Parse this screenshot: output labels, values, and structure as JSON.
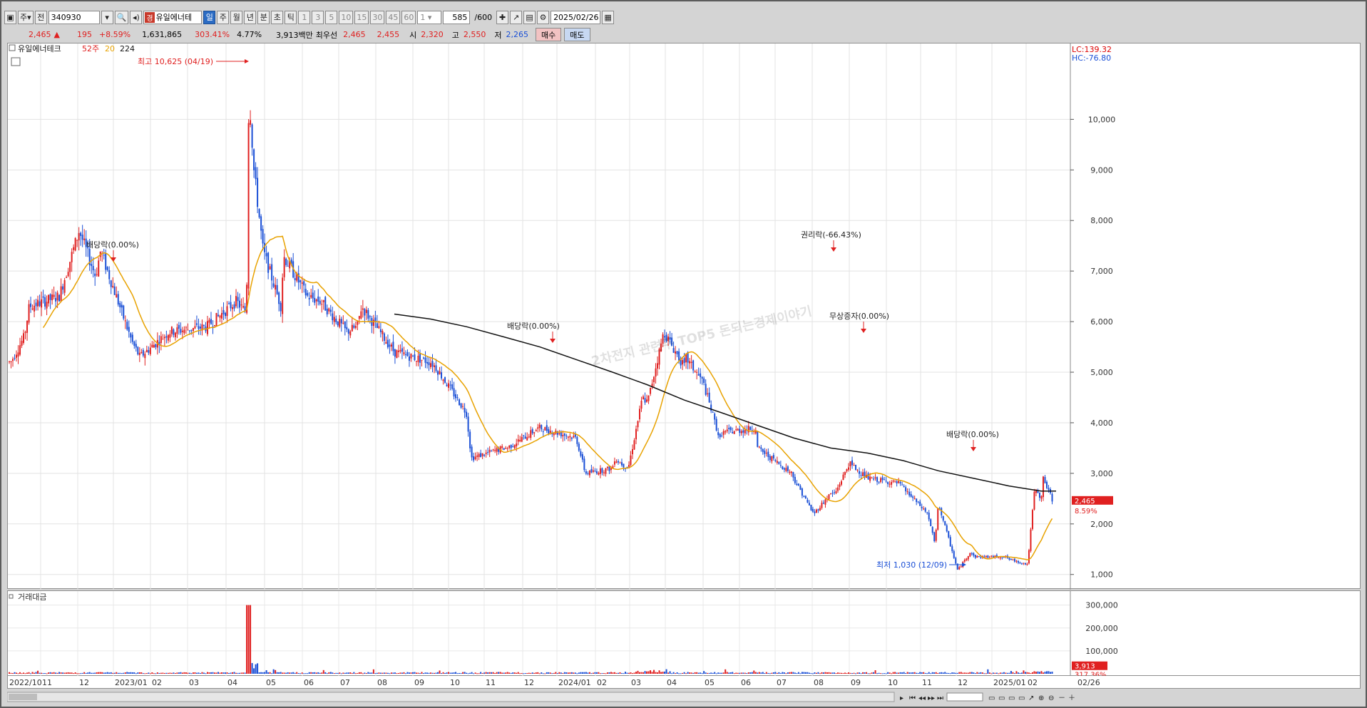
{
  "toolbar": {
    "period_prefix": "주",
    "scope_label": "전",
    "code": "340930",
    "stock_badge": "경",
    "stock_name": "유일에너테",
    "periods": [
      "일",
      "주",
      "월",
      "년",
      "분",
      "초",
      "틱"
    ],
    "minutes": [
      "1",
      "3",
      "5",
      "10",
      "15",
      "30",
      "45",
      "60"
    ],
    "count_unit": "1",
    "count": "585",
    "count_max": "/600",
    "date": "2025/02/26"
  },
  "quote": {
    "price": "2,465",
    "arrow": "▲",
    "change": "195",
    "change_pct": "+8.59%",
    "volume": "1,631,865",
    "vol_ratio": "303.41%",
    "turnover": "4.77%",
    "value": "3,913백만",
    "best_ask_label": "최우선",
    "best_ask": "2,465",
    "best_bid": "2,455",
    "open_label": "시",
    "open": "2,320",
    "high_label": "고",
    "high": "2,550",
    "low_label": "저",
    "low": "2,265",
    "buy_label": "매수",
    "sell_label": "매도"
  },
  "legend": {
    "name": "유일에너테크",
    "w52": "52주",
    "ma20": "20",
    "ma224": "224"
  },
  "right_info": {
    "lc": "LC:139.32",
    "hc": "HC:-76.80"
  },
  "price_axis": [
    "10,000",
    "9,000",
    "8,000",
    "7,000",
    "6,000",
    "5,000",
    "4,000",
    "3,000",
    "2,000",
    "1,000"
  ],
  "price_tag": {
    "price": "2,465",
    "pct": "8.59%"
  },
  "annotations": {
    "high": "최고 10,625 (04/19)",
    "low": "최저 1,030 (12/09)",
    "div1": "배당락(0.00%)",
    "div2": "배당락(0.00%)",
    "rights": "권리락(-66.43%)",
    "bonus": "무상증자(0.00%)",
    "div3": "배당락(0.00%)"
  },
  "watermark": "2차전지 관련주 TOP5 돈되는경제이야기",
  "volume_panel": {
    "title": "거래대금",
    "axis": [
      "300,000",
      "200,000",
      "100,000"
    ],
    "tag_value": "3,913",
    "tag_pct": "317.36%"
  },
  "x_axis": [
    "2022/10",
    "11",
    "12",
    "2023/01",
    "02",
    "03",
    "04",
    "05",
    "06",
    "07",
    "08",
    "09",
    "10",
    "11",
    "12",
    "2024/01",
    "02",
    "03",
    "04",
    "05",
    "06",
    "07",
    "08",
    "09",
    "10",
    "11",
    "12",
    "2025/01",
    "02",
    "02/26"
  ],
  "colors": {
    "up": "#e02020",
    "down": "#1a4fd6",
    "ma20": "#e8a200",
    "ma224": "#111111"
  },
  "chart_data": {
    "type": "candlestick",
    "x": [
      "2022/10",
      "2022/11",
      "2022/12",
      "2023/01",
      "2023/02",
      "2023/03",
      "2023/04",
      "2023/05",
      "2023/06",
      "2023/07",
      "2023/08",
      "2023/09",
      "2023/10",
      "2023/11",
      "2023/12",
      "2024/01",
      "2024/02",
      "2024/03",
      "2024/04",
      "2024/05",
      "2024/06",
      "2024/07",
      "2024/08",
      "2024/09",
      "2024/10",
      "2024/11",
      "2024/12",
      "2025/01",
      "2025/02"
    ],
    "close": [
      5700,
      6500,
      6900,
      5600,
      5800,
      5900,
      6200,
      7300,
      6400,
      5900,
      5400,
      5200,
      4200,
      3500,
      3900,
      3700,
      3100,
      4400,
      5100,
      3800,
      3500,
      2900,
      2600,
      2900,
      2700,
      2400,
      1350,
      1300,
      2465
    ],
    "ma224": [
      null,
      null,
      null,
      null,
      null,
      null,
      null,
      null,
      null,
      null,
      6150,
      6050,
      5900,
      5700,
      5500,
      5250,
      5000,
      4750,
      4450,
      4200,
      3950,
      3700,
      3500,
      3400,
      3250,
      3050,
      2900,
      2750,
      2650
    ],
    "ylim": [
      700,
      11500
    ]
  }
}
